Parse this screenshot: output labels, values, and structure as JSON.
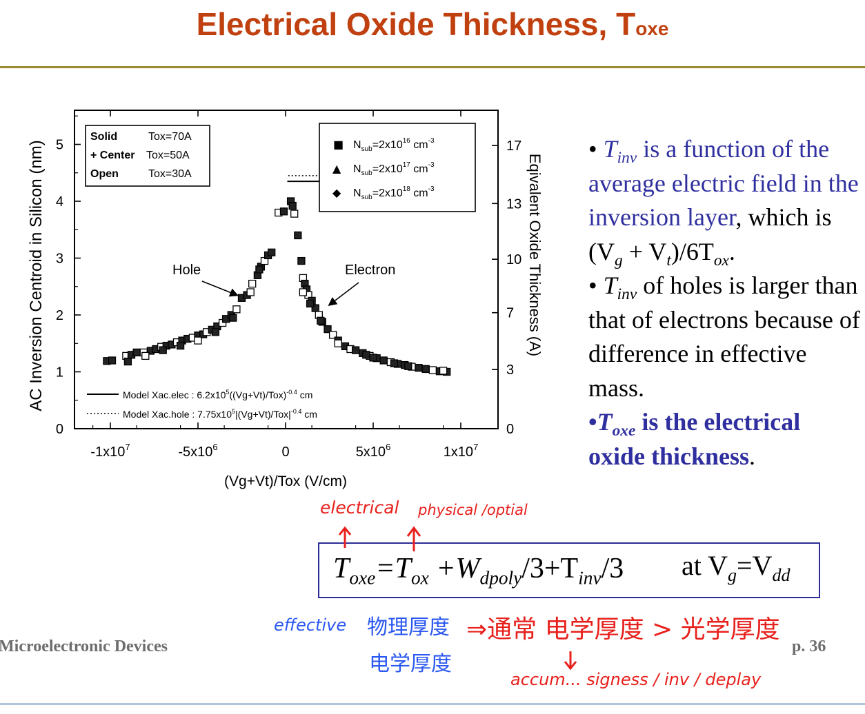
{
  "slide": {
    "title_main": "Electrical Oxide Thickness, T",
    "title_sub": "oxe",
    "footer_left": "Microelectronic Devices",
    "footer_right": "p. 36"
  },
  "bullets": {
    "b1_tinv": "T",
    "b1_inv": "inv",
    "b1_text": " is a function of the average electric field in the inversion layer",
    "b1_text2": ", which is (V",
    "b1_g": "g",
    "b1_plus": " + V",
    "b1_t": "t",
    "b1_mid": ")/6T",
    "b1_ox": "ox",
    "b1_end": ".",
    "b2_t": "T",
    "b2_inv": "inv",
    "b2_text": " of holes is larger than that of electrons because of difference in effective mass.",
    "b3_t": "T",
    "b3_oxe": "oxe",
    "b3_text": " is the electrical oxide thickness",
    "b3_end": "."
  },
  "equation": {
    "T": "T",
    "oxe": "oxe",
    "eq1": "=T",
    "ox": "ox",
    "plusW": " +W",
    "dpoly": "dpoly",
    "div3a": "/3+T",
    "inv": "inv",
    "div3b": "/3",
    "at": "at V",
    "g": "g",
    "eqV": "=V",
    "dd": "dd"
  },
  "handwriting": {
    "electrical": "electrical",
    "physical": "physical /optial",
    "effective": "effective",
    "phys_cn": "物理厚度",
    "elec_cn": "电学厚度",
    "normal_cn": "⇒通常 电学厚度 > 光学厚度",
    "accum": "accum... signess / inv / deplay"
  },
  "chart_data": {
    "type": "scatter",
    "xlabel": "(Vg+Vt)/Tox (V/cm)",
    "ylabel_left": "AC Inversion Centroid in Silicon (nm)",
    "ylabel_right": "Eqivalent Oxide Thickness (A)",
    "xlim": [
      -12000000,
      12000000
    ],
    "ylim": [
      0,
      5.6
    ],
    "x_ticks": [
      -10000000,
      -5000000,
      0,
      5000000,
      10000000
    ],
    "x_tick_labels": [
      "-1x10",
      "-5x10",
      "0",
      "5x10",
      "1x10"
    ],
    "x_tick_exps": [
      "7",
      "6",
      "",
      "6",
      "7"
    ],
    "y_ticks": [
      0,
      1,
      2,
      3,
      4,
      5
    ],
    "y_tick_labels": [
      "0",
      "1",
      "2",
      "3",
      "4",
      "5"
    ],
    "y2_ticks": [
      0,
      3,
      7,
      10,
      13,
      17
    ],
    "y2_tick_labels": [
      "0",
      "3",
      "7",
      "10",
      "13",
      "17"
    ],
    "y2_positions": [
      0,
      1.04,
      2.04,
      2.98,
      3.96,
      4.98
    ],
    "legend_thickness": {
      "rows": [
        {
          "style": "Solid",
          "tox": "Tox=70A"
        },
        {
          "style": "+ Center",
          "tox": "Tox=50A"
        },
        {
          "style": "Open",
          "tox": "Tox=30A"
        }
      ]
    },
    "legend_doping": {
      "rows": [
        {
          "marker": "■",
          "pre": "N",
          "sub": "sub",
          "mid": "=2x10",
          "exp": "16",
          "unit": " cm",
          "uexp": "-3"
        },
        {
          "marker": "▲",
          "pre": "N",
          "sub": "sub",
          "mid": "=2x10",
          "exp": "17",
          "unit": " cm",
          "uexp": "-3"
        },
        {
          "marker": "◆",
          "pre": "N",
          "sub": "sub",
          "mid": "=2x10",
          "exp": "18",
          "unit": " cm",
          "uexp": "-3"
        }
      ]
    },
    "model_legend": [
      {
        "style": "solid",
        "text": "Model Xac.elec : 6.2x10",
        "exp": "5",
        "text2": "((Vg+Vt)/Tox)",
        "exp2": "-0.4",
        "unit": " cm"
      },
      {
        "style": "dotted",
        "text": "Model Xac.hole : 7.75x10",
        "exp": "5",
        "text2": "|(Vg+Vt)/Tox|",
        "exp2": "-0.4",
        "unit": " cm"
      }
    ],
    "annotations": [
      {
        "text": "Hole",
        "x": -4800000,
        "y": 2.85,
        "arrow_to": [
          -2600000,
          2.3
        ]
      },
      {
        "text": "Electron",
        "x": 4200000,
        "y": 2.85,
        "arrow_to": [
          2200000,
          2.0
        ]
      }
    ],
    "series": [
      {
        "name": "Holes (measured)",
        "points": [
          [
            -10200000,
            1.19
          ],
          [
            -9900000,
            1.2
          ],
          [
            -9100000,
            1.28
          ],
          [
            -8800000,
            1.3
          ],
          [
            -8500000,
            1.34
          ],
          [
            -8100000,
            1.34
          ],
          [
            -7700000,
            1.37
          ],
          [
            -7400000,
            1.4
          ],
          [
            -7100000,
            1.44
          ],
          [
            -6800000,
            1.46
          ],
          [
            -6500000,
            1.48
          ],
          [
            -6200000,
            1.52
          ],
          [
            -5900000,
            1.55
          ],
          [
            -5600000,
            1.58
          ],
          [
            -5300000,
            1.6
          ],
          [
            -5000000,
            1.64
          ],
          [
            -4700000,
            1.66
          ],
          [
            -4500000,
            1.7
          ],
          [
            -4200000,
            1.74
          ],
          [
            -3900000,
            1.8
          ],
          [
            -3600000,
            1.86
          ],
          [
            -3400000,
            1.93
          ],
          [
            -3100000,
            2.0
          ],
          [
            -2800000,
            2.1
          ],
          [
            -2500000,
            2.3
          ],
          [
            -2200000,
            2.35
          ],
          [
            -1900000,
            2.55
          ],
          [
            -1600000,
            2.7
          ],
          [
            -1400000,
            2.85
          ],
          [
            -1200000,
            2.95
          ],
          [
            -1000000,
            3.05
          ],
          [
            -800000,
            3.1
          ],
          [
            -400000,
            3.8
          ],
          [
            -100000,
            3.82
          ],
          [
            -9000000,
            1.18
          ],
          [
            -8000000,
            1.28
          ],
          [
            -7000000,
            1.38
          ],
          [
            -6000000,
            1.46
          ],
          [
            -5000000,
            1.55
          ],
          [
            -4000000,
            1.7
          ],
          [
            -3000000,
            1.95
          ],
          [
            -2000000,
            2.4
          ],
          [
            -1500000,
            2.8
          ]
        ]
      },
      {
        "name": "Electrons (measured)",
        "points": [
          [
            300000,
            4.0
          ],
          [
            400000,
            3.92
          ],
          [
            500000,
            3.78
          ],
          [
            700000,
            3.4
          ],
          [
            900000,
            2.95
          ],
          [
            1000000,
            2.65
          ],
          [
            1100000,
            2.55
          ],
          [
            1200000,
            2.45
          ],
          [
            1300000,
            2.35
          ],
          [
            1500000,
            2.25
          ],
          [
            1700000,
            2.12
          ],
          [
            1900000,
            2.0
          ],
          [
            2100000,
            1.88
          ],
          [
            2400000,
            1.75
          ],
          [
            2700000,
            1.65
          ],
          [
            3000000,
            1.55
          ],
          [
            3400000,
            1.45
          ],
          [
            3700000,
            1.4
          ],
          [
            4000000,
            1.38
          ],
          [
            4400000,
            1.33
          ],
          [
            4800000,
            1.28
          ],
          [
            5200000,
            1.24
          ],
          [
            5600000,
            1.2
          ],
          [
            6000000,
            1.17
          ],
          [
            6400000,
            1.14
          ],
          [
            6800000,
            1.12
          ],
          [
            7200000,
            1.09
          ],
          [
            7600000,
            1.07
          ],
          [
            8000000,
            1.05
          ],
          [
            8400000,
            1.03
          ],
          [
            8800000,
            1.01
          ],
          [
            9200000,
            1.0
          ],
          [
            1000000,
            2.4
          ],
          [
            1400000,
            2.2
          ],
          [
            2000000,
            1.9
          ],
          [
            3000000,
            1.5
          ],
          [
            5000000,
            1.25
          ],
          [
            7000000,
            1.1
          ],
          [
            9000000,
            1.02
          ],
          [
            4600000,
            1.3
          ],
          [
            6200000,
            1.15
          ]
        ]
      },
      {
        "name": "Model Xac.elec",
        "line": "solid",
        "function": "6.2e5*x^-0.4 (x in V/cm, result nm)",
        "x_range": [
          100000,
          9700000
        ]
      },
      {
        "name": "Model Xac.hole",
        "line": "dotted",
        "function": "7.75e5*|x|^-0.4 (x in V/cm, result nm)",
        "x_range": [
          -2000000,
          -100000
        ]
      }
    ]
  }
}
